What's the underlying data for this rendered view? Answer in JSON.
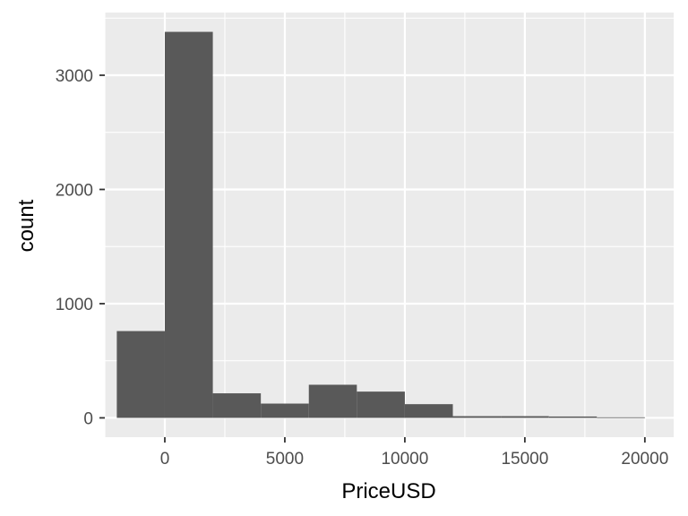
{
  "chart_data": {
    "type": "bar",
    "subtype": "histogram",
    "xlabel": "PriceUSD",
    "ylabel": "count",
    "bins": [
      {
        "x0": -2000,
        "x1": 0,
        "count": 760
      },
      {
        "x0": 0,
        "x1": 2000,
        "count": 3380
      },
      {
        "x0": 2000,
        "x1": 4000,
        "count": 215
      },
      {
        "x0": 4000,
        "x1": 6000,
        "count": 125
      },
      {
        "x0": 6000,
        "x1": 8000,
        "count": 290
      },
      {
        "x0": 8000,
        "x1": 10000,
        "count": 230
      },
      {
        "x0": 10000,
        "x1": 12000,
        "count": 120
      },
      {
        "x0": 12000,
        "x1": 14000,
        "count": 15
      },
      {
        "x0": 14000,
        "x1": 16000,
        "count": 15
      },
      {
        "x0": 16000,
        "x1": 18000,
        "count": 12
      },
      {
        "x0": 18000,
        "x1": 20000,
        "count": 5
      }
    ],
    "x_ticks": [
      0,
      5000,
      10000,
      15000,
      20000
    ],
    "y_ticks": [
      0,
      1000,
      2000,
      3000
    ],
    "x_tick_labels": [
      "0",
      "5000",
      "10000",
      "15000",
      "20000"
    ],
    "y_tick_labels": [
      "0",
      "1000",
      "2000",
      "3000"
    ],
    "xlim": [
      -2500,
      21200
    ],
    "ylim": [
      -169,
      3549
    ],
    "grid": true,
    "legend": "none",
    "colors": {
      "panel_background": "#ebebeb",
      "grid_major": "#ffffff",
      "bar_fill": "#595959",
      "tick_text": "#4d4d4d",
      "title_text": "#000000"
    }
  }
}
